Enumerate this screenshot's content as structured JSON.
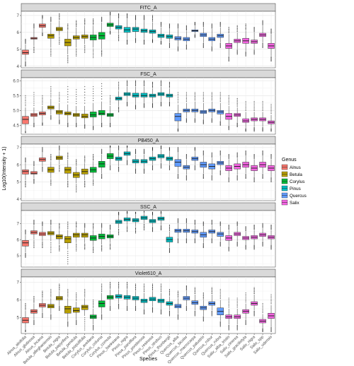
{
  "chart_data": {
    "type": "boxplot",
    "xlabel": "Species",
    "ylabel": "Log10(Intensity + 1)",
    "legend_title": "Genus",
    "legend_position": "right",
    "grid": true,
    "categories": [
      "Alnus_alnifolia",
      "Alnus_glutinosa",
      "Alnus_incana",
      "Betula_alleghaniensis",
      "Betula_nigra",
      "Betula_papyrifera",
      "Betula_pendula",
      "Betula_populifolia",
      "Corylus_avellana",
      "Corylus_colurna",
      "Corylus_cornuta",
      "Pinus_banksiana",
      "Pinus_nigra",
      "Pinus_parviflora",
      "Pinus_ponderosa",
      "Pinus_resinosa",
      "Pinus_strobus",
      "Pinus_thunbergii",
      "Quercus_alba",
      "Quercus_bicolor",
      "Quercus_macrocarpa",
      "Quercus_palustris",
      "Quercus_robur",
      "Quercus_rubra",
      "Salix_alba_tristis",
      "Salix_cinerea",
      "Salix_gracilistyla",
      "Salix_nigra",
      "Salix_spp",
      "Salix_udensis"
    ],
    "genus_of_species": [
      "Alnus",
      "Alnus",
      "Alnus",
      "Betula",
      "Betula",
      "Betula",
      "Betula",
      "Betula",
      "Corylus",
      "Corylus",
      "Corylus",
      "Pinus",
      "Pinus",
      "Pinus",
      "Pinus",
      "Pinus",
      "Pinus",
      "Pinus",
      "Quercus",
      "Quercus",
      "Quercus",
      "Quercus",
      "Quercus",
      "Quercus",
      "Salix",
      "Salix",
      "Salix",
      "Salix",
      "Salix",
      "Salix"
    ],
    "genera": [
      {
        "name": "Alnus",
        "color": "#F8766D"
      },
      {
        "name": "Betula",
        "color": "#B79F00"
      },
      {
        "name": "Corylus",
        "color": "#00BA38"
      },
      {
        "name": "Pinus",
        "color": "#00BFC4"
      },
      {
        "name": "Quercus",
        "color": "#619CFF"
      },
      {
        "name": "Salix",
        "color": "#F564E3"
      }
    ],
    "facets": [
      {
        "name": "FITC_A",
        "ylim": [
          3.9,
          7.25
        ],
        "yticks": [
          4,
          5,
          6,
          7
        ],
        "medians": [
          4.8,
          5.65,
          6.4,
          5.8,
          6.2,
          5.4,
          5.7,
          5.75,
          5.7,
          5.8,
          6.45,
          6.3,
          6.15,
          6.2,
          6.1,
          6.05,
          5.8,
          5.75,
          5.65,
          5.6,
          6.1,
          5.85,
          5.6,
          5.8,
          5.2,
          5.5,
          5.5,
          5.45,
          5.85,
          5.2
        ],
        "q1": [
          4.7,
          5.6,
          6.3,
          5.65,
          6.1,
          5.2,
          5.6,
          5.65,
          5.55,
          5.6,
          6.35,
          6.2,
          6.0,
          6.05,
          6.0,
          5.95,
          5.7,
          5.65,
          5.55,
          5.5,
          6.05,
          5.75,
          5.5,
          5.7,
          5.05,
          5.4,
          5.35,
          5.35,
          5.75,
          5.05
        ],
        "q3": [
          4.95,
          5.7,
          6.5,
          5.9,
          6.3,
          5.6,
          5.8,
          5.85,
          5.85,
          6.0,
          6.55,
          6.4,
          6.3,
          6.3,
          6.2,
          6.15,
          5.9,
          5.85,
          5.75,
          5.7,
          6.15,
          5.95,
          5.7,
          5.9,
          5.35,
          5.6,
          5.65,
          5.55,
          5.95,
          5.35
        ],
        "whisker_low": [
          4.3,
          5.2,
          6.0,
          5.1,
          5.8,
          4.7,
          5.1,
          5.3,
          5.1,
          5.0,
          6.1,
          5.9,
          5.6,
          5.7,
          5.6,
          5.6,
          5.5,
          5.4,
          5.2,
          5.3,
          5.9,
          5.4,
          5.2,
          5.4,
          4.6,
          5.0,
          4.9,
          5.0,
          5.4,
          4.6
        ],
        "whisker_high": [
          5.3,
          6.2,
          6.8,
          6.6,
          6.7,
          6.1,
          6.3,
          6.4,
          6.4,
          6.6,
          7.0,
          6.8,
          6.8,
          6.7,
          6.7,
          6.6,
          6.3,
          6.2,
          6.2,
          6.1,
          6.4,
          6.3,
          6.2,
          6.3,
          5.9,
          6.0,
          6.1,
          6.0,
          6.4,
          5.9
        ],
        "outlier_low": [
          4.0,
          4.8,
          5.8,
          4.6,
          5.3,
          4.2,
          4.6,
          4.8,
          4.5,
          4.6,
          5.9,
          5.5,
          5.3,
          5.4,
          5.3,
          5.4,
          5.3,
          5.1,
          4.9,
          5.0,
          5.7,
          5.1,
          4.9,
          5.1,
          4.3,
          4.7,
          4.6,
          4.7,
          5.1,
          4.3
        ],
        "outlier_high": [
          5.6,
          6.5,
          7.0,
          6.9,
          7.1,
          6.5,
          6.7,
          6.8,
          6.8,
          6.9,
          7.2,
          7.1,
          7.1,
          7.0,
          7.0,
          7.0,
          6.6,
          6.5,
          6.5,
          6.4,
          6.6,
          6.6,
          6.5,
          6.6,
          6.3,
          6.4,
          6.5,
          6.3,
          6.7,
          6.2
        ]
      },
      {
        "name": "FSC_A",
        "ylim": [
          4.2,
          6.1
        ],
        "yticks": [
          4.5,
          5.0,
          5.5,
          6.0
        ],
        "medians": [
          4.7,
          4.85,
          4.9,
          5.1,
          4.95,
          4.9,
          4.85,
          4.8,
          4.85,
          4.9,
          4.85,
          5.4,
          5.55,
          5.5,
          5.5,
          5.5,
          5.55,
          5.5,
          4.8,
          5.0,
          5.0,
          4.95,
          5.0,
          4.95,
          4.8,
          4.85,
          4.65,
          4.7,
          4.7,
          4.6
        ],
        "q1": [
          4.55,
          4.8,
          4.85,
          5.05,
          4.88,
          4.85,
          4.8,
          4.75,
          4.78,
          4.85,
          4.8,
          5.35,
          5.5,
          5.45,
          5.45,
          5.45,
          5.5,
          5.45,
          4.65,
          4.95,
          4.95,
          4.9,
          4.95,
          4.88,
          4.7,
          4.8,
          4.6,
          4.65,
          4.65,
          4.55
        ],
        "q3": [
          4.8,
          4.9,
          4.95,
          5.15,
          5.0,
          4.95,
          4.9,
          4.88,
          4.95,
          5.0,
          4.9,
          5.45,
          5.6,
          5.58,
          5.58,
          5.55,
          5.6,
          5.55,
          4.9,
          5.05,
          5.05,
          5.0,
          5.05,
          5.0,
          4.9,
          4.9,
          4.72,
          4.75,
          4.75,
          4.65
        ],
        "whisker_low": [
          4.3,
          4.6,
          4.6,
          4.85,
          4.7,
          4.6,
          4.6,
          4.55,
          4.5,
          4.6,
          4.6,
          5.15,
          5.3,
          5.2,
          5.25,
          5.25,
          5.3,
          5.3,
          4.4,
          4.75,
          4.75,
          4.7,
          4.75,
          4.65,
          4.5,
          4.6,
          4.4,
          4.45,
          4.45,
          4.4
        ],
        "whisker_high": [
          5.1,
          5.1,
          5.15,
          5.4,
          5.25,
          5.2,
          5.15,
          5.15,
          5.25,
          5.3,
          5.15,
          5.65,
          5.8,
          5.8,
          5.8,
          5.75,
          5.8,
          5.75,
          5.2,
          5.25,
          5.3,
          5.25,
          5.3,
          5.25,
          5.15,
          5.1,
          4.95,
          4.95,
          4.95,
          4.85
        ],
        "outlier_low": [
          4.25,
          4.45,
          4.5,
          4.7,
          4.55,
          4.45,
          4.45,
          4.4,
          4.35,
          4.45,
          4.45,
          4.95,
          5.15,
          5.05,
          5.1,
          5.1,
          5.15,
          5.15,
          4.3,
          4.6,
          4.6,
          4.55,
          4.6,
          4.5,
          4.35,
          4.45,
          4.3,
          4.3,
          4.3,
          4.3
        ],
        "outlier_high": [
          5.5,
          5.6,
          5.5,
          5.8,
          5.6,
          5.8,
          5.7,
          5.8,
          5.8,
          5.9,
          5.5,
          5.95,
          6.0,
          6.0,
          6.0,
          5.95,
          6.0,
          5.95,
          5.6,
          5.6,
          5.6,
          5.6,
          5.6,
          5.6,
          5.5,
          5.4,
          5.3,
          5.3,
          5.3,
          5.2
        ]
      },
      {
        "name": "PB450_A",
        "ylim": [
          3.9,
          7.2
        ],
        "yticks": [
          4,
          5,
          6,
          7
        ],
        "medians": [
          5.6,
          5.5,
          6.3,
          5.7,
          6.4,
          5.7,
          5.4,
          5.6,
          5.7,
          6.05,
          6.5,
          6.35,
          6.65,
          6.2,
          6.2,
          6.35,
          6.5,
          6.35,
          6.15,
          5.85,
          6.35,
          6.0,
          5.9,
          6.1,
          5.8,
          5.9,
          6.0,
          5.8,
          6.0,
          5.8
        ],
        "q1": [
          5.45,
          5.45,
          6.2,
          5.55,
          6.3,
          5.5,
          5.25,
          5.45,
          5.55,
          5.85,
          6.35,
          6.25,
          6.55,
          6.1,
          6.1,
          6.25,
          6.4,
          6.25,
          5.9,
          5.75,
          6.25,
          5.85,
          5.75,
          6.0,
          5.65,
          5.75,
          5.85,
          5.65,
          5.85,
          5.65
        ],
        "q3": [
          5.7,
          5.6,
          6.4,
          5.85,
          6.5,
          5.85,
          5.55,
          5.75,
          5.85,
          6.2,
          6.65,
          6.45,
          6.75,
          6.3,
          6.3,
          6.45,
          6.6,
          6.45,
          6.3,
          5.95,
          6.45,
          6.15,
          6.05,
          6.2,
          5.95,
          6.05,
          6.15,
          5.95,
          6.15,
          5.95
        ],
        "whisker_low": [
          5.1,
          5.2,
          5.9,
          5.2,
          6.0,
          5.1,
          4.9,
          5.1,
          5.2,
          5.5,
          6.0,
          5.9,
          6.3,
          5.8,
          5.8,
          6.0,
          6.1,
          6.0,
          5.5,
          5.4,
          6.0,
          5.5,
          5.4,
          5.7,
          5.3,
          5.4,
          5.5,
          5.3,
          5.5,
          5.3
        ],
        "whisker_high": [
          6.1,
          5.9,
          6.7,
          6.2,
          6.8,
          6.3,
          5.9,
          6.1,
          6.2,
          6.6,
          7.0,
          6.8,
          7.0,
          6.6,
          6.6,
          6.8,
          6.9,
          6.8,
          6.7,
          6.3,
          6.8,
          6.5,
          6.4,
          6.5,
          6.3,
          6.4,
          6.5,
          6.3,
          6.5,
          6.3
        ],
        "outlier_low": [
          4.7,
          4.9,
          5.6,
          4.8,
          5.6,
          4.7,
          4.4,
          4.7,
          4.8,
          5.2,
          5.7,
          5.6,
          6.0,
          5.5,
          5.5,
          5.7,
          5.8,
          5.7,
          5.2,
          5.1,
          5.7,
          5.2,
          5.1,
          5.4,
          5.0,
          5.1,
          5.2,
          5.0,
          5.2,
          5.0
        ],
        "outlier_high": [
          6.4,
          6.2,
          7.0,
          6.6,
          7.1,
          6.7,
          6.3,
          6.5,
          6.6,
          6.9,
          7.1,
          7.1,
          7.1,
          6.9,
          6.9,
          7.0,
          7.1,
          7.0,
          7.0,
          6.6,
          7.0,
          6.8,
          6.7,
          6.8,
          6.6,
          6.7,
          6.8,
          6.6,
          6.8,
          6.6
        ]
      },
      {
        "name": "SSC_A",
        "ylim": [
          4.3,
          7.8
        ],
        "yticks": [
          5,
          6,
          7
        ],
        "medians": [
          5.8,
          6.45,
          6.35,
          6.4,
          6.2,
          6.05,
          6.3,
          6.3,
          6.1,
          6.2,
          6.2,
          7.1,
          7.25,
          7.2,
          7.35,
          7.15,
          7.3,
          6.0,
          6.55,
          6.55,
          6.5,
          6.3,
          6.5,
          6.35,
          6.1,
          6.35,
          6.1,
          6.15,
          6.3,
          6.15
        ],
        "q1": [
          5.6,
          6.35,
          6.25,
          6.3,
          6.05,
          5.8,
          6.15,
          6.15,
          5.95,
          6.05,
          6.1,
          7.0,
          7.15,
          7.1,
          7.25,
          7.05,
          7.2,
          5.85,
          6.45,
          6.45,
          6.4,
          6.15,
          6.4,
          6.2,
          5.95,
          6.25,
          6.0,
          6.05,
          6.2,
          6.05
        ],
        "q3": [
          5.95,
          6.55,
          6.45,
          6.5,
          6.3,
          6.2,
          6.4,
          6.4,
          6.25,
          6.35,
          6.3,
          7.2,
          7.35,
          7.3,
          7.45,
          7.25,
          7.4,
          6.15,
          6.65,
          6.65,
          6.6,
          6.45,
          6.6,
          6.45,
          6.25,
          6.45,
          6.2,
          6.25,
          6.4,
          6.25
        ],
        "whisker_low": [
          5.2,
          6.0,
          5.9,
          5.9,
          5.7,
          5.4,
          5.8,
          5.8,
          5.6,
          5.7,
          5.8,
          6.7,
          6.9,
          6.8,
          7.0,
          6.8,
          6.9,
          5.5,
          6.1,
          6.1,
          6.1,
          5.8,
          6.1,
          5.9,
          5.6,
          5.9,
          5.7,
          5.7,
          5.9,
          5.7
        ],
        "whisker_high": [
          6.3,
          6.9,
          6.8,
          6.9,
          6.6,
          6.6,
          6.7,
          6.7,
          6.6,
          6.7,
          6.6,
          7.5,
          7.6,
          7.6,
          7.7,
          7.5,
          7.6,
          6.5,
          7.0,
          7.0,
          6.9,
          6.8,
          6.9,
          6.8,
          6.6,
          6.8,
          6.5,
          6.6,
          6.7,
          6.6
        ],
        "outlier_low": [
          4.9,
          5.5,
          5.5,
          5.2,
          5.3,
          4.5,
          5.3,
          5.4,
          5.2,
          5.3,
          5.4,
          6.3,
          6.5,
          6.4,
          6.6,
          6.5,
          6.6,
          5.2,
          5.8,
          5.8,
          5.8,
          5.5,
          5.8,
          5.6,
          5.3,
          5.6,
          5.4,
          5.4,
          5.6,
          5.4
        ],
        "outlier_high": [
          6.6,
          7.2,
          7.1,
          7.2,
          7.0,
          7.1,
          7.1,
          7.0,
          7.0,
          7.0,
          6.9,
          7.7,
          7.75,
          7.7,
          7.75,
          7.7,
          7.75,
          6.9,
          7.3,
          7.3,
          7.2,
          7.1,
          7.2,
          7.1,
          6.9,
          7.1,
          6.8,
          6.9,
          7.0,
          6.9
        ]
      },
      {
        "name": "Violet610_A",
        "ylim": [
          4.1,
          7.3
        ],
        "yticks": [
          5,
          6,
          7
        ],
        "medians": [
          4.85,
          5.35,
          5.7,
          5.65,
          6.1,
          5.5,
          5.4,
          5.6,
          5.05,
          5.8,
          6.15,
          6.2,
          6.15,
          6.1,
          5.95,
          6.05,
          5.95,
          5.8,
          5.65,
          6.1,
          5.85,
          5.55,
          5.8,
          5.35,
          5.05,
          5.05,
          5.35,
          5.8,
          4.8,
          5.1
        ],
        "q1": [
          4.7,
          5.25,
          5.6,
          5.55,
          6.0,
          5.25,
          5.3,
          5.45,
          4.95,
          5.6,
          6.05,
          6.1,
          6.05,
          6.0,
          5.85,
          5.95,
          5.85,
          5.7,
          5.55,
          6.0,
          5.75,
          5.45,
          5.7,
          5.15,
          4.95,
          4.95,
          5.25,
          5.7,
          4.7,
          4.95
        ],
        "q3": [
          5.0,
          5.45,
          5.8,
          5.75,
          6.2,
          5.65,
          5.55,
          5.7,
          5.15,
          5.95,
          6.25,
          6.3,
          6.25,
          6.2,
          6.05,
          6.15,
          6.05,
          5.9,
          5.75,
          6.2,
          5.95,
          5.65,
          5.9,
          5.55,
          5.15,
          5.15,
          5.45,
          5.9,
          4.9,
          5.25
        ],
        "whisker_low": [
          4.3,
          4.9,
          5.3,
          5.2,
          5.7,
          4.8,
          4.9,
          5.1,
          4.6,
          5.2,
          5.7,
          5.8,
          5.7,
          5.7,
          5.5,
          5.6,
          5.5,
          5.4,
          5.2,
          5.7,
          5.4,
          5.1,
          5.4,
          4.8,
          4.6,
          4.6,
          4.9,
          5.4,
          4.4,
          4.5
        ],
        "whisker_high": [
          5.4,
          5.8,
          6.1,
          6.1,
          6.5,
          6.1,
          5.9,
          6.1,
          5.5,
          6.4,
          6.6,
          6.6,
          6.6,
          6.5,
          6.4,
          6.5,
          6.4,
          6.2,
          6.1,
          6.5,
          6.3,
          6.0,
          6.3,
          6.0,
          5.5,
          5.5,
          5.8,
          6.3,
          5.2,
          5.7
        ],
        "outlier_low": [
          4.2,
          4.6,
          5.0,
          4.9,
          5.4,
          4.5,
          4.6,
          4.3,
          4.3,
          4.9,
          5.4,
          5.5,
          5.4,
          5.4,
          5.2,
          5.3,
          5.2,
          5.1,
          4.9,
          5.4,
          5.1,
          4.8,
          5.1,
          4.5,
          4.3,
          4.3,
          4.6,
          5.1,
          4.2,
          4.2
        ],
        "outlier_high": [
          5.8,
          6.2,
          6.5,
          6.6,
          6.9,
          6.6,
          6.4,
          6.6,
          6.0,
          6.9,
          7.0,
          7.0,
          7.0,
          6.9,
          6.9,
          6.9,
          6.9,
          6.6,
          6.5,
          6.8,
          6.7,
          6.4,
          6.7,
          6.6,
          6.1,
          6.1,
          6.4,
          6.7,
          5.8,
          6.3
        ]
      }
    ]
  }
}
